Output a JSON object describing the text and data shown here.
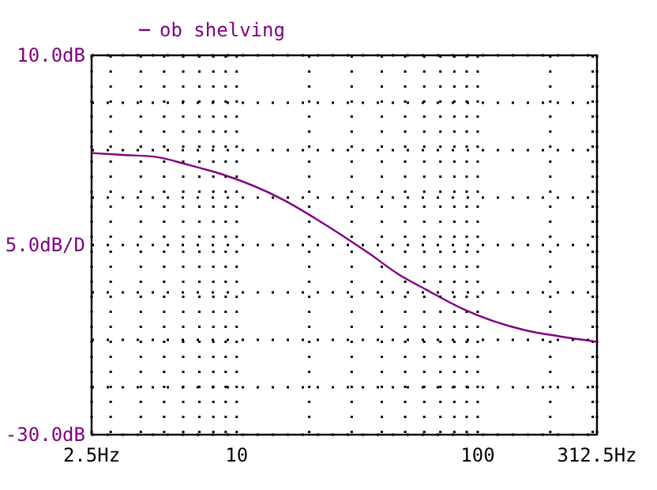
{
  "chart_data": {
    "type": "line",
    "log": "x",
    "series": [
      {
        "name": "ob shelving",
        "color": "#800080",
        "x": [
          2.5,
          3.37,
          4.58,
          6.4,
          8.6,
          15.8,
          21.2,
          35,
          47,
          61,
          86,
          158,
          215,
          312.5
        ],
        "values": [
          -0.3,
          -0.5,
          -0.7,
          -1.6,
          -2.5,
          -5.3,
          -7.2,
          -10.8,
          -13.1,
          -14.7,
          -16.7,
          -19.0,
          -19.6,
          -20.2
        ]
      }
    ],
    "xlim": [
      2.5,
      312.5
    ],
    "ylim": [
      -30,
      10
    ],
    "xticks": [
      {
        "value": 2.5,
        "label": "2.5Hz"
      },
      {
        "value": 3,
        "label": null
      },
      {
        "value": 4,
        "label": null
      },
      {
        "value": 5,
        "label": null
      },
      {
        "value": 6,
        "label": null
      },
      {
        "value": 7,
        "label": null
      },
      {
        "value": 8,
        "label": null
      },
      {
        "value": 9,
        "label": null
      },
      10,
      {
        "value": 20,
        "label": null
      },
      {
        "value": 30,
        "label": null
      },
      {
        "value": 40,
        "label": null
      },
      {
        "value": 50,
        "label": null
      },
      {
        "value": 60,
        "label": null
      },
      {
        "value": 70,
        "label": null
      },
      {
        "value": 80,
        "label": null
      },
      {
        "value": 90,
        "label": null
      },
      100,
      {
        "value": 200,
        "label": null
      },
      {
        "value": 300,
        "label": null
      },
      {
        "value": 312.5,
        "label": "312.5Hz"
      }
    ],
    "yticks": [
      {
        "value": 10,
        "label": "10.0dB"
      },
      {
        "value": 5,
        "label": null
      },
      {
        "value": 0,
        "label": null
      },
      {
        "value": -5,
        "label": null
      },
      {
        "value": -10,
        "label": null
      },
      {
        "value": -15,
        "label": null
      },
      {
        "value": -20,
        "label": null
      },
      {
        "value": -25,
        "label": null
      },
      {
        "value": -30,
        "label": "-30.0dB"
      }
    ],
    "ylabel": "5.0dB/D",
    "grid": true,
    "line_style": "solid",
    "marker": "none",
    "legend": "top left"
  }
}
